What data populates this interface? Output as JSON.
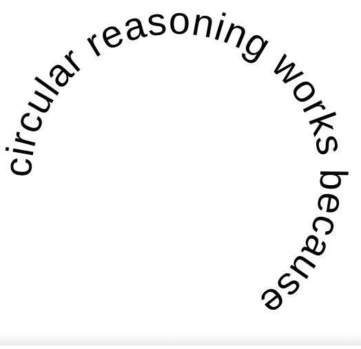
{
  "phrase": "circular reasoning works because",
  "text_color": "#000000",
  "background_color": "#ffffff"
}
